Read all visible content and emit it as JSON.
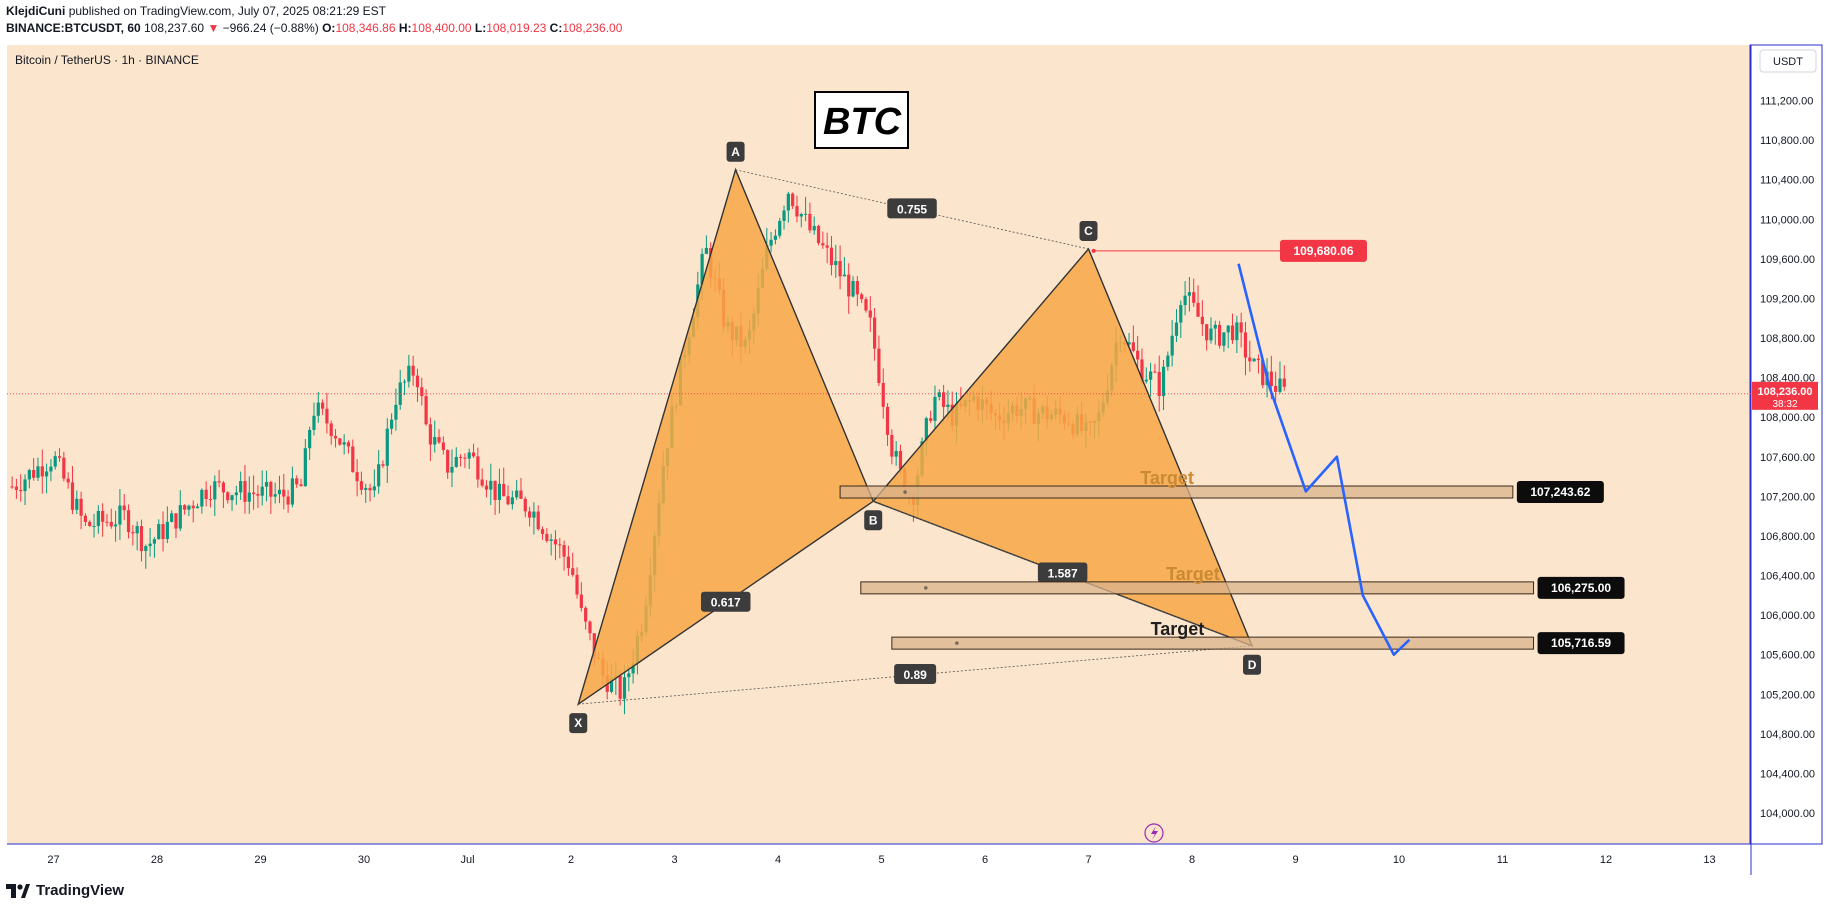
{
  "header": {
    "author": "KlejdiCuni",
    "published_text": "published on TradingView.com, July 07, 2025 08:21:29 EST",
    "symbol": "BINANCE:BTCUSDT, 60",
    "last": "108,237.60",
    "change_arrow": "▼",
    "change": "−966.24 (−0.88%)",
    "o_label": "O:",
    "o_value": "108,346.86",
    "h_label": "H:",
    "h_value": "108,400.00",
    "l_label": "L:",
    "l_value": "108,019.23",
    "c_label": "C:",
    "c_value": "108,236.00"
  },
  "chart_title": "Bitcoin / TetherUS · 1h · BINANCE",
  "currency_button": "USDT",
  "banner_text": "BTC",
  "footer_logo_text": "TradingView",
  "colors": {
    "background": "#fbe5cc",
    "up": "#089981",
    "down": "#f23645",
    "pattern_fill": "#f7a845",
    "arrow": "#2962ff",
    "box_fill": "#d9b38c"
  },
  "chart_data": {
    "type": "candlestick",
    "title": "Bitcoin / TetherUS · 1h · BINANCE",
    "xlabel": "",
    "ylabel": "",
    "ylim": [
      103900,
      111600
    ],
    "y_ticks": [
      104000,
      104400,
      104800,
      105200,
      105600,
      106000,
      106400,
      106800,
      107200,
      107600,
      108000,
      108400,
      108800,
      109200,
      109600,
      110000,
      110400,
      110800,
      111200
    ],
    "y_tick_labels": [
      "104,000.00",
      "104,400.00",
      "104,800.00",
      "105,200.00",
      "105,600.00",
      "106,000.00",
      "106,400.00",
      "106,800.00",
      "107,200.00",
      "107,600.00",
      "108,000.00",
      "108,400.00",
      "108,800.00",
      "109,200.00",
      "109,600.00",
      "110,000.00",
      "110,400.00",
      "110,800.00",
      "111,200.00"
    ],
    "x_ticks": [
      {
        "day": -3,
        "label": "27"
      },
      {
        "day": -2,
        "label": "28"
      },
      {
        "day": -1,
        "label": "29"
      },
      {
        "day": 0,
        "label": "30"
      },
      {
        "day": 1,
        "label": "Jul"
      },
      {
        "day": 2,
        "label": "2"
      },
      {
        "day": 3,
        "label": "3"
      },
      {
        "day": 4,
        "label": "4"
      },
      {
        "day": 5,
        "label": "5"
      },
      {
        "day": 6,
        "label": "6"
      },
      {
        "day": 7,
        "label": "7"
      },
      {
        "day": 8,
        "label": "8"
      },
      {
        "day": 9,
        "label": "9"
      },
      {
        "day": 10,
        "label": "10"
      },
      {
        "day": 11,
        "label": "11"
      },
      {
        "day": 12,
        "label": "12"
      },
      {
        "day": 13,
        "label": "13"
      }
    ],
    "price_path": [
      [
        -3.4,
        107300
      ],
      [
        -3.0,
        107600
      ],
      [
        -2.7,
        106900
      ],
      [
        -2.3,
        107000
      ],
      [
        -2.1,
        106700
      ],
      [
        -1.8,
        107000
      ],
      [
        -1.5,
        107300
      ],
      [
        -1.2,
        107250
      ],
      [
        -0.8,
        107200
      ],
      [
        -0.6,
        107300
      ],
      [
        -0.5,
        108100
      ],
      [
        -0.3,
        107900
      ],
      [
        -0.1,
        107500
      ],
      [
        0.1,
        107200
      ],
      [
        0.3,
        108200
      ],
      [
        0.5,
        108500
      ],
      [
        0.6,
        107900
      ],
      [
        0.8,
        107500
      ],
      [
        1.0,
        107650
      ],
      [
        1.3,
        107200
      ],
      [
        1.6,
        107100
      ],
      [
        1.8,
        106800
      ],
      [
        2.0,
        106500
      ],
      [
        2.1,
        106000
      ],
      [
        2.3,
        105400
      ],
      [
        2.5,
        105200
      ],
      [
        2.7,
        106000
      ],
      [
        2.9,
        107600
      ],
      [
        3.1,
        108700
      ],
      [
        3.3,
        109700
      ],
      [
        3.5,
        108900
      ],
      [
        3.7,
        108700
      ],
      [
        3.9,
        109700
      ],
      [
        4.1,
        110300
      ],
      [
        4.3,
        109900
      ],
      [
        4.5,
        109600
      ],
      [
        4.7,
        109300
      ],
      [
        4.9,
        108900
      ],
      [
        5.1,
        107700
      ],
      [
        5.2,
        107350
      ],
      [
        5.3,
        107200
      ],
      [
        5.5,
        108200
      ],
      [
        5.7,
        108000
      ],
      [
        5.9,
        108200
      ],
      [
        6.1,
        108000
      ],
      [
        6.3,
        108100
      ],
      [
        6.5,
        108050
      ],
      [
        6.8,
        108000
      ],
      [
        7.0,
        107800
      ],
      [
        7.1,
        108000
      ],
      [
        7.3,
        108900
      ],
      [
        7.5,
        108500
      ],
      [
        7.7,
        108300
      ],
      [
        7.9,
        109300
      ],
      [
        8.0,
        109100
      ],
      [
        8.2,
        108800
      ],
      [
        8.4,
        108900
      ],
      [
        8.6,
        108500
      ],
      [
        8.9,
        108237
      ]
    ],
    "current_price": {
      "value": 108236.0,
      "label": "108,236.00",
      "countdown": "38:32"
    },
    "harmonic_pattern": {
      "points": [
        {
          "label": "X",
          "day": 2.07,
          "price": 105100
        },
        {
          "label": "A",
          "day": 3.59,
          "price": 110500
        },
        {
          "label": "B",
          "day": 4.92,
          "price": 107150
        },
        {
          "label": "C",
          "day": 7.0,
          "price": 109700
        },
        {
          "label": "D",
          "day": 8.58,
          "price": 105690
        }
      ],
      "ratios": [
        {
          "label": "0.617",
          "between": "XB"
        },
        {
          "label": "0.755",
          "between": "AC"
        },
        {
          "label": "1.587",
          "between": "BD"
        },
        {
          "label": "0.89",
          "between": "XD"
        }
      ]
    },
    "resistance": {
      "value": 109680.06,
      "label": "109,680.06",
      "from_day": 7.05,
      "to_day": 8.85
    },
    "targets": [
      {
        "text": "Target",
        "value": 107243.62,
        "label": "107,243.62",
        "from_day": 4.6,
        "to_day": 11.1
      },
      {
        "text": "Target",
        "value": 106275.0,
        "label": "106,275.00",
        "from_day": 4.8,
        "to_day": 11.3
      },
      {
        "text": "Target",
        "value": 105716.59,
        "label": "105,716.59",
        "from_day": 5.1,
        "to_day": 11.3
      }
    ],
    "projection_path": [
      [
        8.45,
        109550
      ],
      [
        8.75,
        108300
      ],
      [
        9.1,
        107250
      ],
      [
        9.4,
        107600
      ],
      [
        9.65,
        106200
      ],
      [
        9.95,
        105600
      ],
      [
        10.1,
        105750
      ]
    ]
  }
}
